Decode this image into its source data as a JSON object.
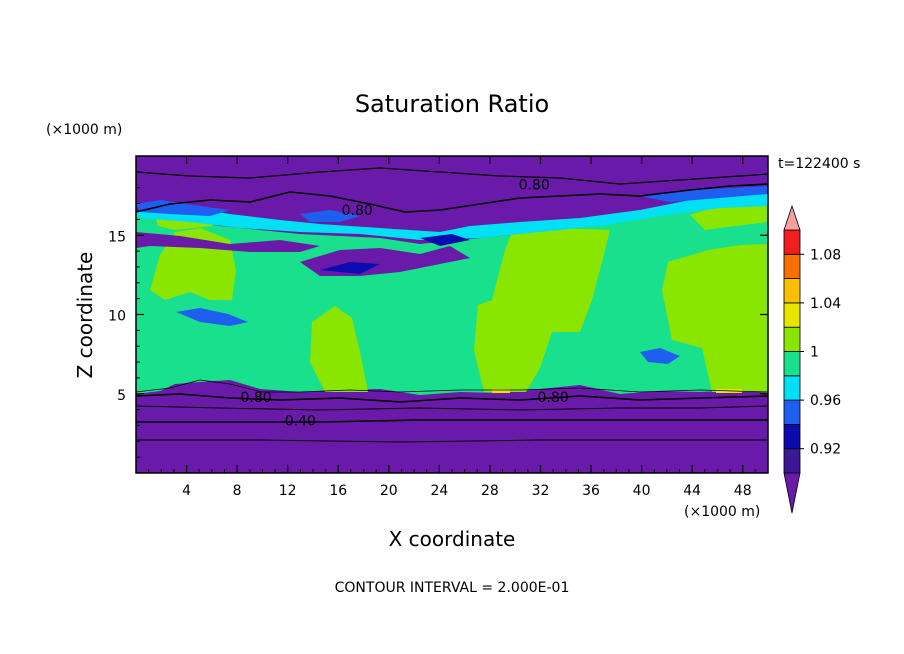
{
  "chart_data": {
    "type": "heatmap",
    "title": "Saturation Ratio",
    "xlabel": "X coordinate",
    "ylabel": "Z coordinate",
    "x_unit": "(×1000 m)",
    "y_unit": "(×1000 m)",
    "time_label": "t=122400 s",
    "footer": "CONTOUR INTERVAL = 2.000E-01",
    "xlim": [
      0,
      50
    ],
    "ylim": [
      0,
      20
    ],
    "x_ticks": [
      4,
      8,
      12,
      16,
      20,
      24,
      28,
      32,
      36,
      40,
      44,
      48
    ],
    "y_ticks": [
      5,
      10,
      15
    ],
    "colorbar": {
      "levels": [
        0.9,
        0.92,
        0.94,
        0.96,
        0.98,
        1.0,
        1.02,
        1.04,
        1.06,
        1.08,
        1.1
      ],
      "labels": [
        "0.92",
        "0.96",
        "1",
        "1.04",
        "1.08"
      ],
      "label_values": [
        0.92,
        0.96,
        1.0,
        1.04,
        1.08
      ],
      "colors": [
        "#3c1899",
        "#0b0bb0",
        "#1e5ff0",
        "#00e0f5",
        "#19e08c",
        "#8ae600",
        "#e6e600",
        "#f8c000",
        "#f87000",
        "#f02020"
      ],
      "below_color": "#6a1aa8",
      "above_color": "#f4a0a0"
    },
    "contour_labels": [
      {
        "text": "0.80",
        "x": 31.5,
        "z": 18.2
      },
      {
        "text": "0.80",
        "x": 17.5,
        "z": 16.6
      },
      {
        "text": "0.80",
        "x": 9.5,
        "z": 4.8
      },
      {
        "text": "0.80",
        "x": 33.0,
        "z": 4.8
      },
      {
        "text": "0.40",
        "x": 13.0,
        "z": 3.3
      }
    ]
  }
}
